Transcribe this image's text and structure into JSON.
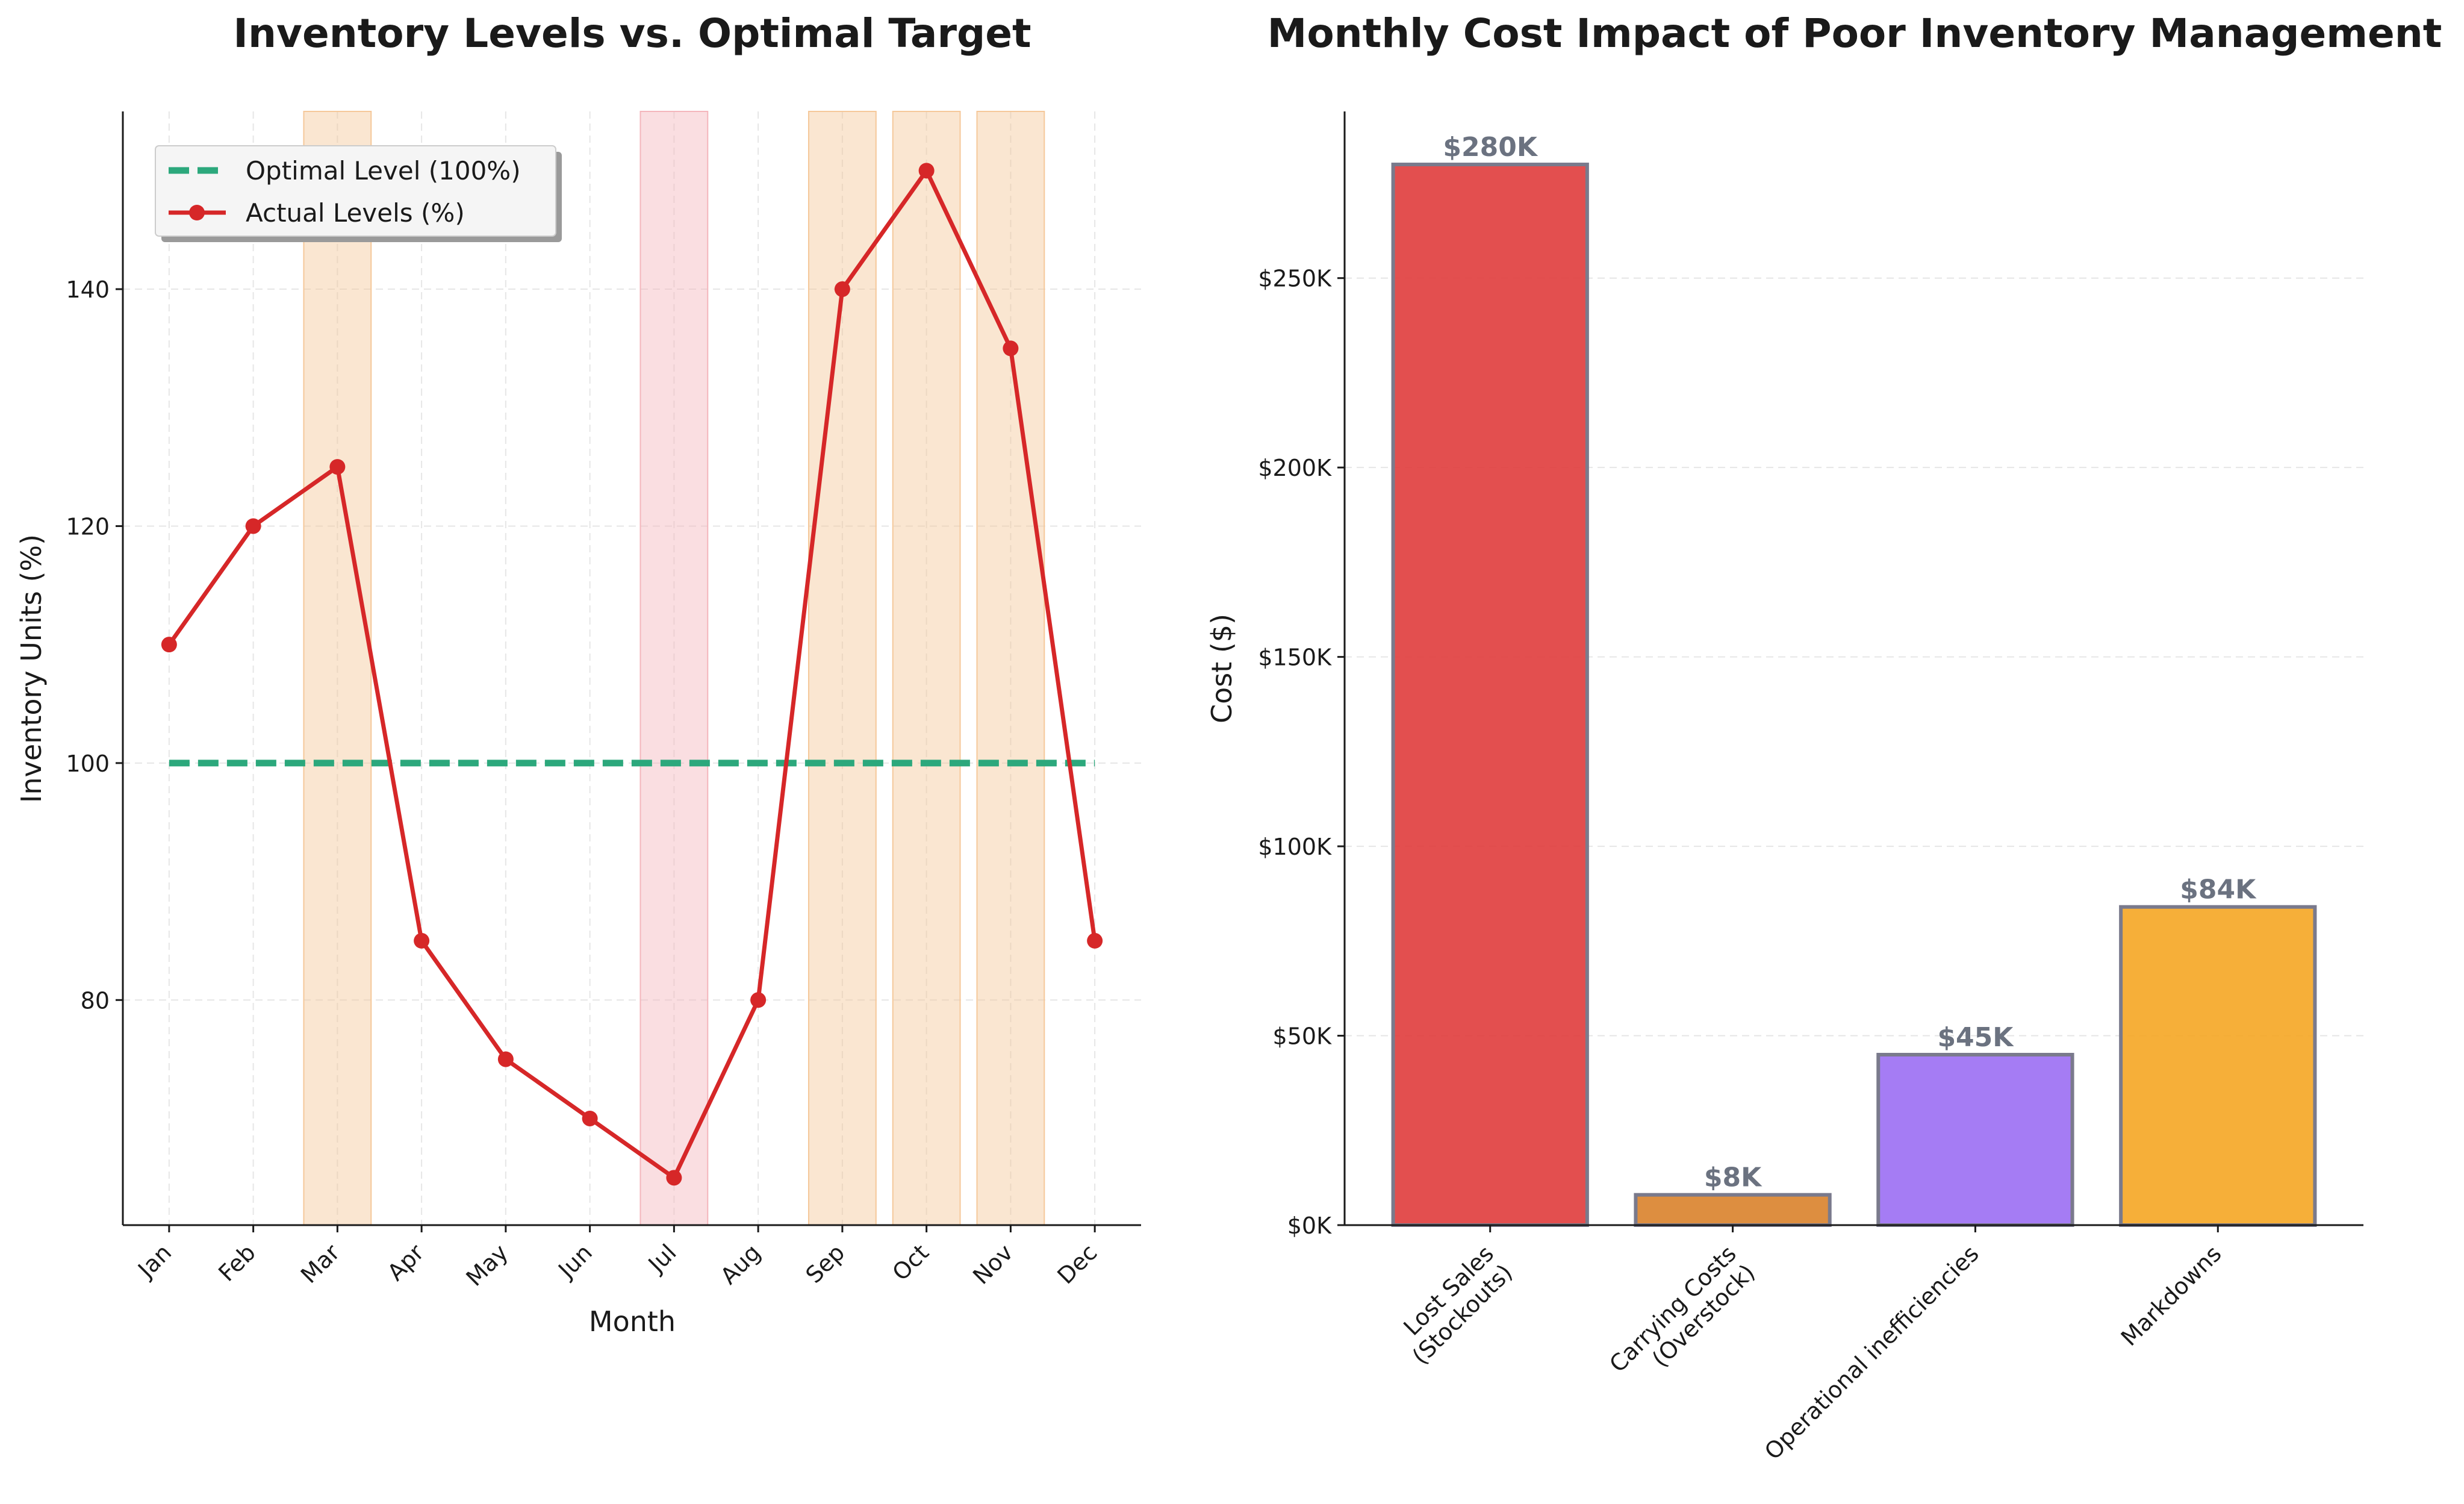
{
  "chart_data": [
    {
      "type": "line",
      "title": "Inventory Levels vs. Optimal Target",
      "xlabel": "Month",
      "ylabel": "Inventory Units (%)",
      "categories": [
        "Jan",
        "Feb",
        "Mar",
        "Apr",
        "May",
        "Jun",
        "Jul",
        "Aug",
        "Sep",
        "Oct",
        "Nov",
        "Dec"
      ],
      "ylim": [
        61,
        155
      ],
      "yticks": [
        80,
        100,
        120,
        140
      ],
      "grid": true,
      "legend_position": "top-left",
      "series": [
        {
          "name": "Optimal Level (100%)",
          "style": "dashed",
          "color": "#2ca87c",
          "values": [
            100,
            100,
            100,
            100,
            100,
            100,
            100,
            100,
            100,
            100,
            100,
            100
          ]
        },
        {
          "name": "Actual Levels (%)",
          "style": "line-marker",
          "color": "#d62728",
          "values": [
            110,
            120,
            125,
            85,
            75,
            70,
            65,
            80,
            140,
            150,
            135,
            85
          ]
        }
      ],
      "highlights": [
        {
          "month": "Mar",
          "kind": "overstock",
          "color": "#f5c89a"
        },
        {
          "month": "Jul",
          "kind": "stockout",
          "color": "#f4b6bc"
        },
        {
          "month": "Sep",
          "kind": "overstock",
          "color": "#f5c89a"
        },
        {
          "month": "Oct",
          "kind": "overstock",
          "color": "#f5c89a"
        },
        {
          "month": "Nov",
          "kind": "overstock",
          "color": "#f5c89a"
        }
      ]
    },
    {
      "type": "bar",
      "title": "Monthly Cost Impact of Poor Inventory Management",
      "xlabel": "",
      "ylabel": "Cost ($)",
      "categories": [
        [
          "Lost Sales",
          "(Stockouts)"
        ],
        [
          "Carrying Costs",
          "(Overstock)"
        ],
        [
          "Operational inefficiencies"
        ],
        [
          "Markdowns"
        ]
      ],
      "values": [
        280000,
        8000,
        45000,
        84000
      ],
      "data_labels": [
        "$280K",
        "$8K",
        "$45K",
        "$84K"
      ],
      "colors": [
        "#e03c3c",
        "#d9822b",
        "#9b6ef3",
        "#f5a623"
      ],
      "ylim": [
        0,
        294000
      ],
      "yticks": [
        0,
        50000,
        100000,
        150000,
        200000,
        250000
      ],
      "ytick_labels": [
        "$0K",
        "$50K",
        "$100K",
        "$150K",
        "$200K",
        "$250K"
      ],
      "grid": true
    }
  ]
}
